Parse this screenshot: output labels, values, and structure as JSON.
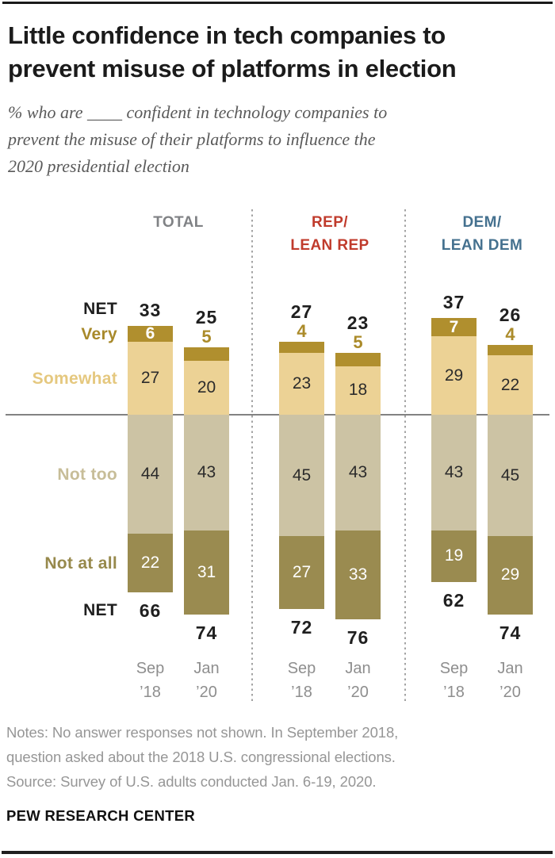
{
  "page": {
    "title_lines": [
      "Little confidence in tech companies to",
      "prevent misuse of platforms in election"
    ],
    "subtitle_lines": [
      "% who are ____ confident in technology companies to",
      "prevent the misuse of their platforms to influence the",
      "2020 presidential election"
    ],
    "notes_lines": [
      "Notes: No answer responses not shown. In September 2018,",
      "question asked about the 2018 U.S. congressional elections.",
      "Source: Survey of U.S. adults conducted Jan. 6-19, 2020."
    ],
    "footer": "PEW RESEARCH CENTER"
  },
  "chart_data": {
    "type": "bar",
    "variant": "diverging-stacked-column",
    "unit": "%",
    "stack_order_above_axis": [
      "Very",
      "Somewhat"
    ],
    "stack_order_below_axis": [
      "Not too",
      "Not at all"
    ],
    "x_tick_lines": [
      [
        "Sep",
        "’18"
      ],
      [
        "Jan",
        "’20"
      ]
    ],
    "row_labels": [
      {
        "text": "NET",
        "color": "#1f1f1f"
      },
      {
        "text": "Very",
        "color": "#a8892a"
      },
      {
        "text": "Somewhat",
        "color": "#e5c87f"
      },
      {
        "text": "Not too",
        "color": "#c7bd98"
      },
      {
        "text": "Not at all",
        "color": "#97894c"
      },
      {
        "text": "NET",
        "color": "#1f1f1f"
      }
    ],
    "groups": [
      {
        "label_lines": [
          "TOTAL"
        ],
        "label_color": "#808285",
        "bars": [
          {
            "period": "Sep ’18",
            "net_confident": 33,
            "very": 6,
            "somewhat": 27,
            "not_too": 44,
            "not_at_all": 22,
            "net_not_confident": 66,
            "very_label_inside": true
          },
          {
            "period": "Jan ’20",
            "net_confident": 25,
            "very": 5,
            "somewhat": 20,
            "not_too": 43,
            "not_at_all": 31,
            "net_not_confident": 74,
            "very_label_inside": false
          }
        ]
      },
      {
        "label_lines": [
          "REP/",
          "LEAN REP"
        ],
        "label_color": "#c03b2c",
        "bars": [
          {
            "period": "Sep ’18",
            "net_confident": 27,
            "very": 4,
            "somewhat": 23,
            "not_too": 45,
            "not_at_all": 27,
            "net_not_confident": 72,
            "very_label_inside": false
          },
          {
            "period": "Jan ’20",
            "net_confident": 23,
            "very": 5,
            "somewhat": 18,
            "not_too": 43,
            "not_at_all": 33,
            "net_not_confident": 76,
            "very_label_inside": false
          }
        ]
      },
      {
        "label_lines": [
          "DEM/",
          "LEAN DEM"
        ],
        "label_color": "#45718f",
        "bars": [
          {
            "period": "Sep ’18",
            "net_confident": 37,
            "very": 7,
            "somewhat": 29,
            "not_too": 43,
            "not_at_all": 19,
            "net_not_confident": 62,
            "very_label_inside": true
          },
          {
            "period": "Jan ’20",
            "net_confident": 26,
            "very": 4,
            "somewhat": 22,
            "not_too": 45,
            "not_at_all": 29,
            "net_not_confident": 74,
            "very_label_inside": false
          }
        ]
      }
    ],
    "colors": {
      "very": "#b08f2e",
      "somewhat": "#ecd295",
      "not_too": "#ccc3a4",
      "not_at_all": "#9a8b50",
      "very_value_outside": "#ab8b2a",
      "value_dark": "#2b2b2b",
      "value_light": "#ffffff",
      "net_value": "#1f1f1f",
      "axis_line": "#828282",
      "tick_label": "#8e8e8e"
    }
  }
}
